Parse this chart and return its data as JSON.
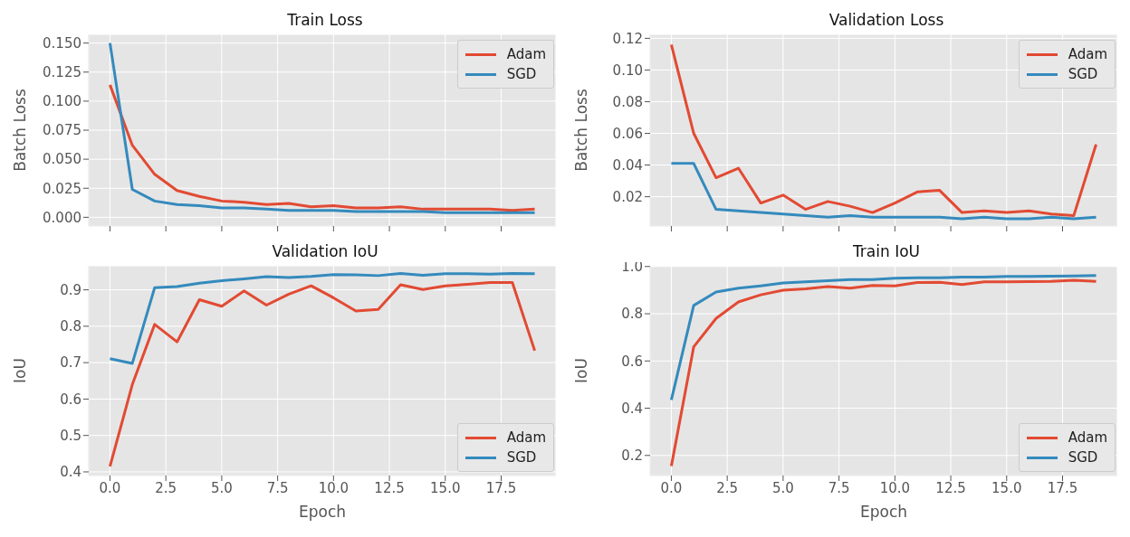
{
  "chart_data": [
    {
      "type": "line",
      "title": "Train Loss",
      "ylabel": "Batch Loss",
      "legend": "top right",
      "grid": true,
      "tick_labels": "y",
      "x": [
        0,
        1,
        2,
        3,
        4,
        5,
        6,
        7,
        8,
        9,
        10,
        11,
        12,
        13,
        14,
        15,
        16,
        17,
        18,
        19
      ],
      "xlim": [
        -0.95,
        19.95
      ],
      "xticks": [
        0,
        2.5,
        5,
        7.5,
        10,
        12.5,
        15,
        17.5
      ],
      "ylim": [
        -0.0075,
        0.1575
      ],
      "yticks": [
        {
          "value": 0,
          "label": "0.000"
        },
        0.025,
        {
          "value": 0.05,
          "label": "0.050"
        },
        0.075,
        {
          "value": 0.1,
          "label": "0.100"
        },
        0.125,
        {
          "value": 0.15,
          "label": "0.150"
        }
      ],
      "series": [
        {
          "name": "Adam",
          "color": "#e24a33",
          "values": [
            0.114,
            0.062,
            0.037,
            0.023,
            0.018,
            0.014,
            0.013,
            0.011,
            0.012,
            0.009,
            0.01,
            0.008,
            0.008,
            0.009,
            0.007,
            0.007,
            0.007,
            0.007,
            0.006,
            0.007
          ]
        },
        {
          "name": "SGD",
          "color": "#348abd",
          "values": [
            0.15,
            0.024,
            0.014,
            0.011,
            0.01,
            0.008,
            0.008,
            0.007,
            0.006,
            0.006,
            0.006,
            0.005,
            0.005,
            0.005,
            0.005,
            0.004,
            0.004,
            0.004,
            0.004,
            0.004
          ]
        }
      ]
    },
    {
      "type": "line",
      "title": "Validation Loss",
      "ylabel": "Batch Loss",
      "legend": "top right",
      "grid": true,
      "tick_labels": "y",
      "x": [
        0,
        1,
        2,
        3,
        4,
        5,
        6,
        7,
        8,
        9,
        10,
        11,
        12,
        13,
        14,
        15,
        16,
        17,
        18,
        19
      ],
      "xlim": [
        -0.95,
        19.95
      ],
      "xticks": [
        0,
        2.5,
        5,
        7.5,
        10,
        12.5,
        15,
        17.5
      ],
      "ylim": [
        0.0015,
        0.1225
      ],
      "yticks": [
        0.02,
        0.04,
        0.06,
        0.08,
        {
          "value": 0.1,
          "label": "0.10"
        },
        0.12
      ],
      "series": [
        {
          "name": "Adam",
          "color": "#e24a33",
          "values": [
            0.116,
            0.06,
            0.032,
            0.038,
            0.016,
            0.021,
            0.012,
            0.017,
            0.014,
            0.01,
            0.016,
            0.023,
            0.024,
            0.01,
            0.011,
            0.01,
            0.011,
            0.009,
            0.008,
            0.053
          ]
        },
        {
          "name": "SGD",
          "color": "#348abd",
          "values": [
            0.041,
            0.041,
            0.012,
            0.011,
            0.01,
            0.009,
            0.008,
            0.007,
            0.008,
            0.007,
            0.007,
            0.007,
            0.007,
            0.006,
            0.007,
            0.006,
            0.006,
            0.007,
            0.006,
            0.007
          ]
        }
      ]
    },
    {
      "type": "line",
      "title": "Validation IoU",
      "xlabel": "Epoch",
      "ylabel": "IoU",
      "legend": "bottom right",
      "grid": true,
      "x": [
        0,
        1,
        2,
        3,
        4,
        5,
        6,
        7,
        8,
        9,
        10,
        11,
        12,
        13,
        14,
        15,
        16,
        17,
        18,
        19
      ],
      "xlim": [
        -0.95,
        19.95
      ],
      "xticks": [
        {
          "value": 0,
          "label": "0.0"
        },
        2.5,
        {
          "value": 5,
          "label": "5.0"
        },
        7.5,
        {
          "value": 10,
          "label": "10.0"
        },
        12.5,
        {
          "value": 15,
          "label": "15.0"
        },
        17.5
      ],
      "ylim": [
        0.39,
        0.966
      ],
      "yticks": [
        0.4,
        0.5,
        0.6,
        0.7,
        0.8,
        0.9
      ],
      "series": [
        {
          "name": "Adam",
          "color": "#e24a33",
          "values": [
            0.415,
            0.64,
            0.805,
            0.757,
            0.873,
            0.855,
            0.897,
            0.858,
            0.888,
            0.911,
            0.878,
            0.842,
            0.846,
            0.914,
            0.901,
            0.911,
            0.915,
            0.92,
            0.92,
            0.733
          ]
        },
        {
          "name": "SGD",
          "color": "#348abd",
          "values": [
            0.711,
            0.698,
            0.906,
            0.909,
            0.918,
            0.925,
            0.93,
            0.936,
            0.934,
            0.937,
            0.942,
            0.941,
            0.939,
            0.945,
            0.94,
            0.944,
            0.944,
            0.943,
            0.945,
            0.944
          ]
        }
      ]
    },
    {
      "type": "line",
      "title": "Train IoU",
      "xlabel": "Epoch",
      "ylabel": "IoU",
      "legend": "bottom right",
      "grid": true,
      "x": [
        0,
        1,
        2,
        3,
        4,
        5,
        6,
        7,
        8,
        9,
        10,
        11,
        12,
        13,
        14,
        15,
        16,
        17,
        18,
        19
      ],
      "xlim": [
        -0.95,
        19.95
      ],
      "xticks": [
        {
          "value": 0,
          "label": "0.0"
        },
        2.5,
        {
          "value": 5,
          "label": "5.0"
        },
        7.5,
        {
          "value": 10,
          "label": "10.0"
        },
        12.5,
        {
          "value": 15,
          "label": "15.0"
        },
        17.5
      ],
      "ylim": [
        0.115,
        1.003
      ],
      "yticks": [
        0.2,
        0.4,
        0.6,
        0.8,
        {
          "value": 1,
          "label": "1.0"
        }
      ],
      "series": [
        {
          "name": "Adam",
          "color": "#e24a33",
          "values": [
            0.155,
            0.66,
            0.78,
            0.85,
            0.88,
            0.9,
            0.905,
            0.915,
            0.908,
            0.92,
            0.918,
            0.932,
            0.933,
            0.924,
            0.935,
            0.935,
            0.936,
            0.937,
            0.942,
            0.937
          ]
        },
        {
          "name": "SGD",
          "color": "#348abd",
          "values": [
            0.435,
            0.835,
            0.892,
            0.908,
            0.918,
            0.93,
            0.935,
            0.94,
            0.945,
            0.945,
            0.95,
            0.952,
            0.952,
            0.955,
            0.955,
            0.958,
            0.958,
            0.959,
            0.96,
            0.962
          ]
        }
      ]
    }
  ]
}
